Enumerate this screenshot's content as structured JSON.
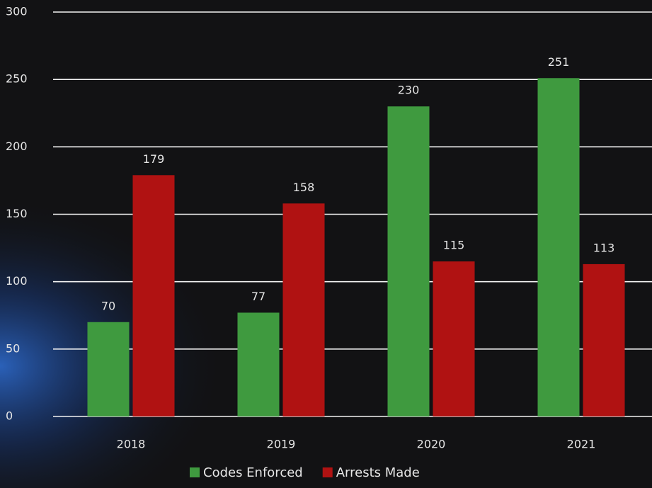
{
  "chart_data": {
    "type": "bar",
    "categories": [
      "2018",
      "2019",
      "2020",
      "2021"
    ],
    "series": [
      {
        "name": "Codes Enforced",
        "color": "#3f9a3f",
        "values": [
          70,
          77,
          230,
          251
        ]
      },
      {
        "name": "Arrests Made",
        "color": "#b01212",
        "values": [
          179,
          158,
          115,
          113
        ]
      }
    ],
    "ylim": [
      0,
      300
    ],
    "yticks": [
      0,
      50,
      100,
      150,
      200,
      250,
      300
    ],
    "grid": true,
    "legend": "bottom"
  }
}
